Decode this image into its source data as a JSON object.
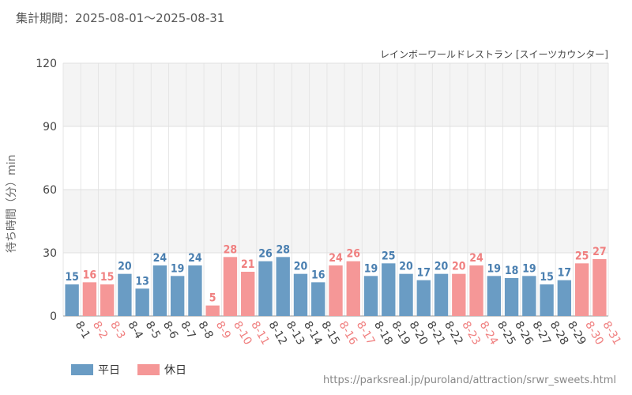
{
  "header": {
    "period": "集計期間：2025-08-01～2025-08-31",
    "subtitle": "レインボーワールドレストラン [スイーツカウンター]"
  },
  "legend": {
    "weekday_label": "平日",
    "holiday_label": "休日"
  },
  "footer": {
    "source": "https://parksreal.jp/puroland/attraction/srwr_sweets.html"
  },
  "colors": {
    "weekday": "#6a9cc4",
    "holiday": "#f59797",
    "weekday_text": "#4a7fb0",
    "holiday_text": "#f08080",
    "axis_text": "#444444",
    "band": "#f4f4f4"
  },
  "chart_data": {
    "type": "bar",
    "title": "",
    "ylabel": "待ち時間（分）min",
    "xlabel": "",
    "ylim": [
      0,
      120
    ],
    "yticks": [
      0,
      30,
      60,
      90,
      120
    ],
    "grid": true,
    "legend_position": "bottom-left",
    "categories": [
      "8-1",
      "8-2",
      "8-3",
      "8-4",
      "8-5",
      "8-6",
      "8-7",
      "8-8",
      "8-9",
      "8-10",
      "8-11",
      "8-12",
      "8-13",
      "8-14",
      "8-15",
      "8-16",
      "8-17",
      "8-18",
      "8-19",
      "8-20",
      "8-21",
      "8-22",
      "8-23",
      "8-24",
      "8-25",
      "8-26",
      "8-27",
      "8-28",
      "8-29",
      "8-30",
      "8-31"
    ],
    "values": [
      15,
      16,
      15,
      20,
      13,
      24,
      19,
      24,
      5,
      28,
      21,
      26,
      28,
      20,
      16,
      24,
      26,
      19,
      25,
      20,
      17,
      20,
      20,
      24,
      19,
      18,
      19,
      15,
      17,
      25,
      27
    ],
    "day_type": [
      "平日",
      "休日",
      "休日",
      "平日",
      "平日",
      "平日",
      "平日",
      "平日",
      "休日",
      "休日",
      "休日",
      "平日",
      "平日",
      "平日",
      "平日",
      "休日",
      "休日",
      "平日",
      "平日",
      "平日",
      "平日",
      "平日",
      "休日",
      "休日",
      "平日",
      "平日",
      "平日",
      "平日",
      "平日",
      "休日",
      "休日"
    ]
  }
}
